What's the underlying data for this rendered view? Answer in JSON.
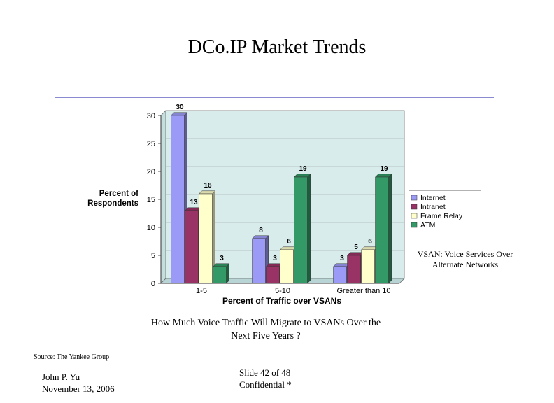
{
  "slide": {
    "title": "DCo.IP Market Trends",
    "annotation_line1": "VSAN: Voice Services Over",
    "annotation_line2": "Alternate Networks",
    "caption_line1": "How Much Voice Traffic Will Migrate to VSANs Over the",
    "caption_line2": "Next Five Years ?",
    "source": "Source: The Yankee Group",
    "author_name": "John P. Yu",
    "author_date": "November 13, 2006",
    "slide_number": "Slide 42  of 48",
    "confidentiality": "Confidential *"
  },
  "chart_data": {
    "type": "bar",
    "title": "",
    "xlabel": "Percent of Traffic over VSANs",
    "ylabel_line1": "Percent of",
    "ylabel_line2": "Respondents",
    "ylim": [
      0,
      30
    ],
    "yticks": [
      0,
      5,
      10,
      15,
      20,
      25,
      30
    ],
    "categories": [
      "1-5",
      "5-10",
      "Greater than 10"
    ],
    "series": [
      {
        "name": "Internet",
        "color": "#9b9bf7",
        "values": [
          30,
          8,
          3
        ]
      },
      {
        "name": "Intranet",
        "color": "#993366",
        "values": [
          13,
          3,
          5
        ]
      },
      {
        "name": "Frame Relay",
        "color": "#ffffcc",
        "values": [
          16,
          6,
          6
        ]
      },
      {
        "name": "ATM",
        "color": "#339966",
        "values": [
          3,
          19,
          19
        ]
      }
    ],
    "legend_position": "right"
  }
}
